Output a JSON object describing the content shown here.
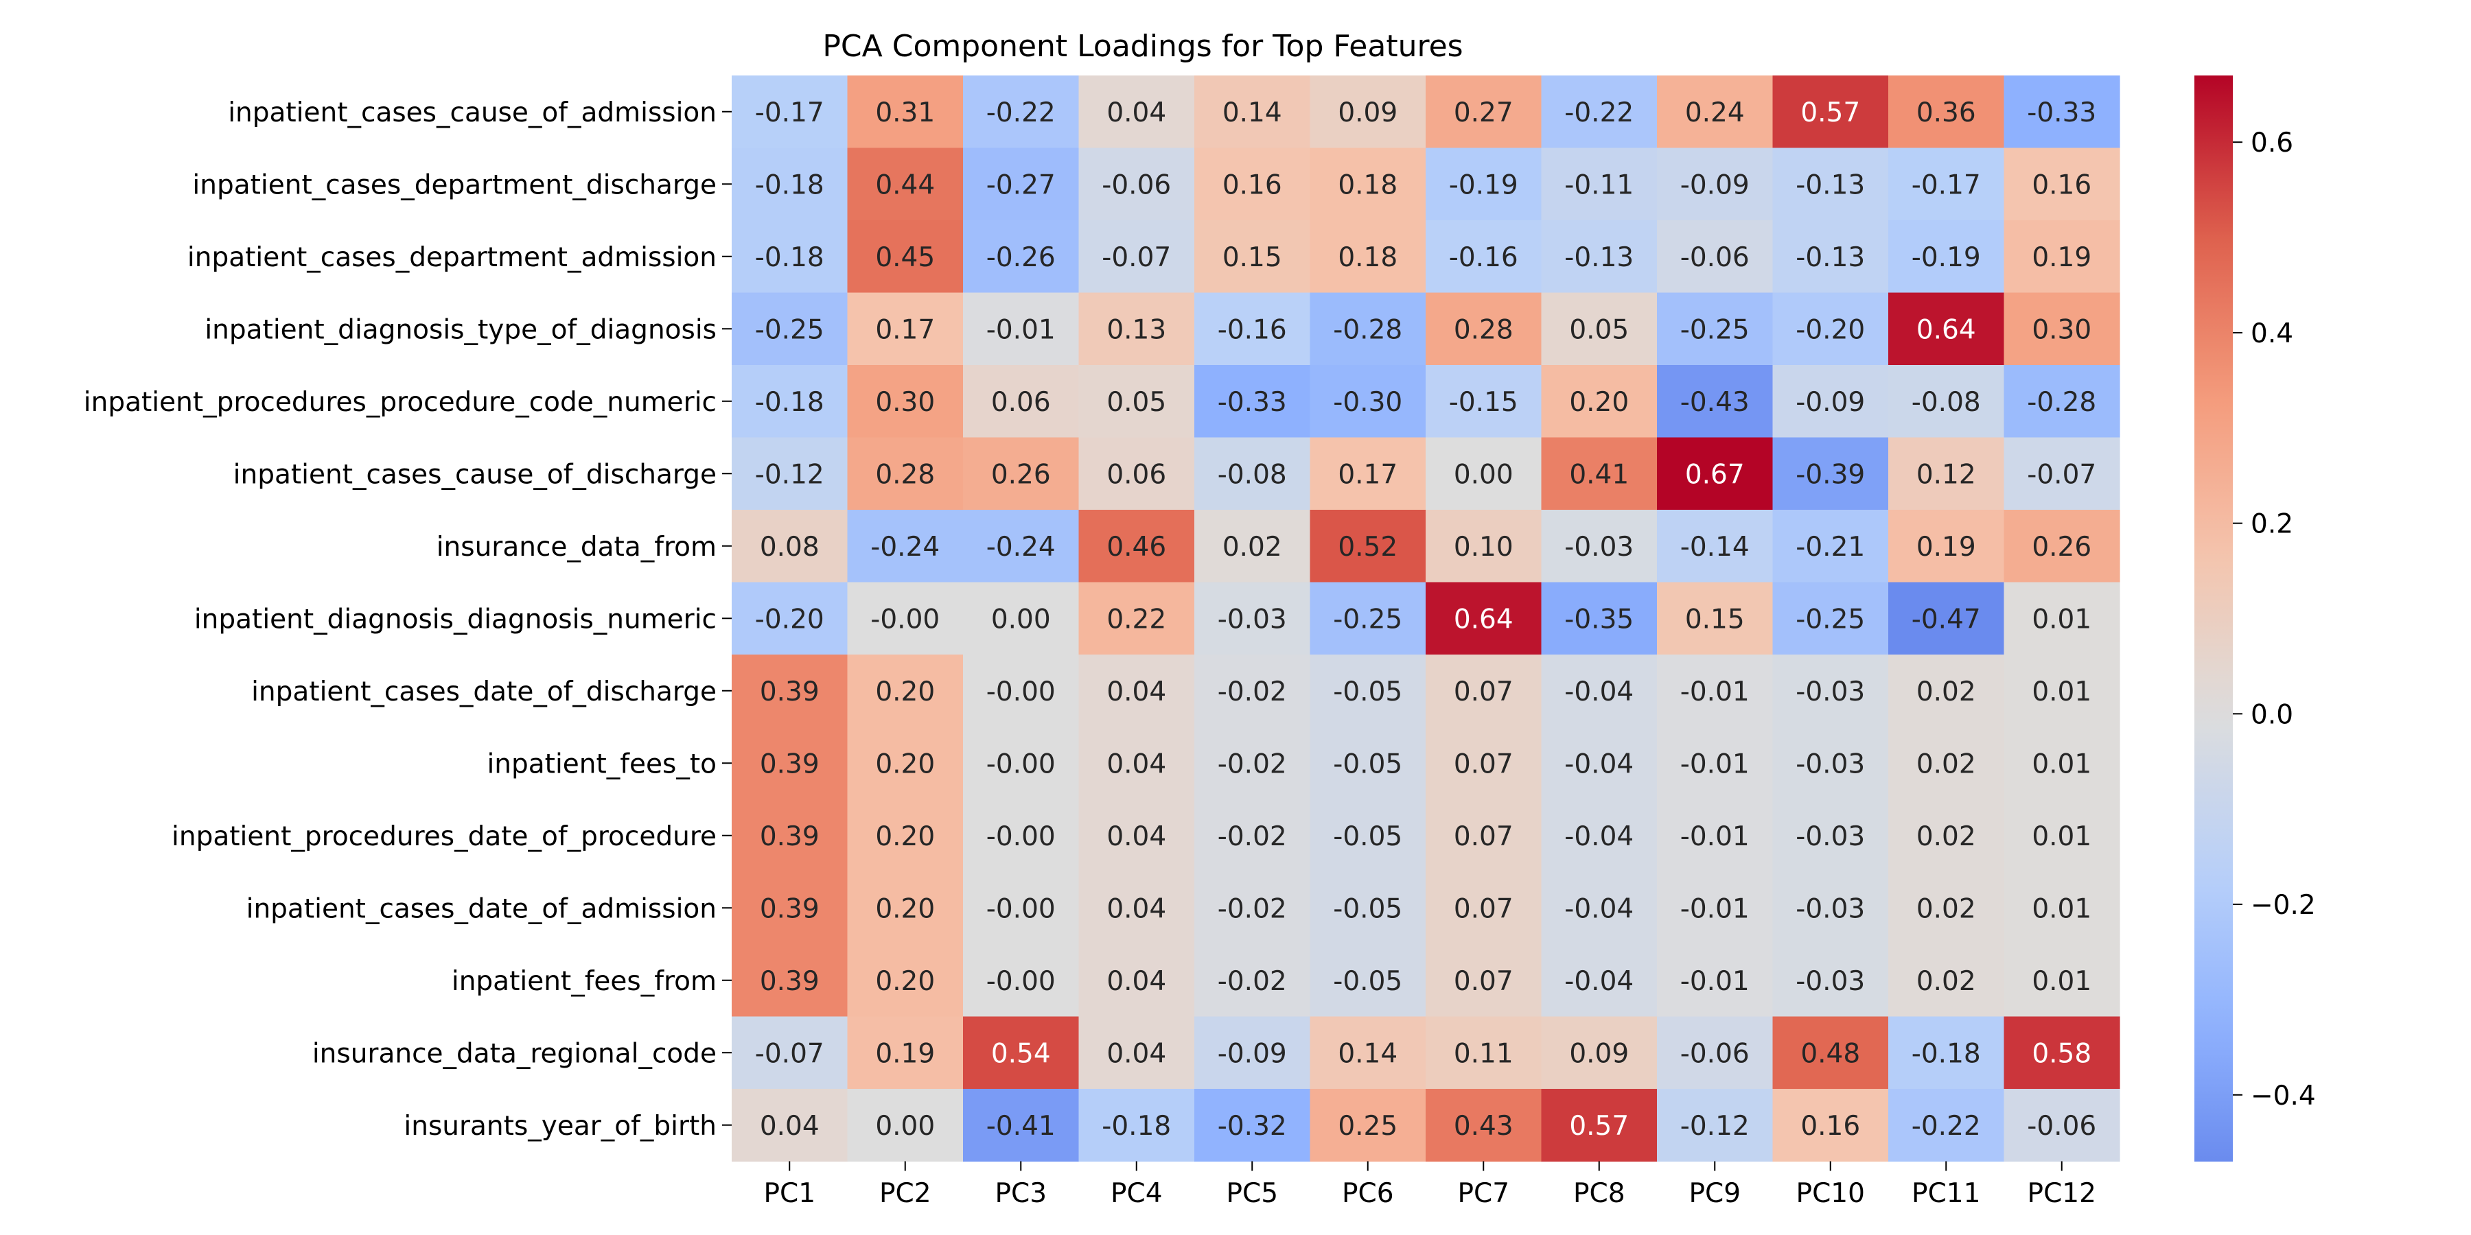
{
  "chart_data": {
    "type": "heatmap",
    "title": "PCA Component Loadings for Top Features",
    "xlabel": "",
    "ylabel": "",
    "columns": [
      "PC1",
      "PC2",
      "PC3",
      "PC4",
      "PC5",
      "PC6",
      "PC7",
      "PC8",
      "PC9",
      "PC10",
      "PC11",
      "PC12"
    ],
    "rows": [
      "inpatient_cases_cause_of_admission",
      "inpatient_cases_department_discharge",
      "inpatient_cases_department_admission",
      "inpatient_diagnosis_type_of_diagnosis",
      "inpatient_procedures_procedure_code_numeric",
      "inpatient_cases_cause_of_discharge",
      "insurance_data_from",
      "inpatient_diagnosis_diagnosis_numeric",
      "inpatient_cases_date_of_discharge",
      "inpatient_fees_to",
      "inpatient_procedures_date_of_procedure",
      "inpatient_cases_date_of_admission",
      "inpatient_fees_from",
      "insurance_data_regional_code",
      "insurants_year_of_birth"
    ],
    "labels": [
      [
        "-0.17",
        "0.31",
        "-0.22",
        "0.04",
        "0.14",
        "0.09",
        "0.27",
        "-0.22",
        "0.24",
        "0.57",
        "0.36",
        "-0.33"
      ],
      [
        "-0.18",
        "0.44",
        "-0.27",
        "-0.06",
        "0.16",
        "0.18",
        "-0.19",
        "-0.11",
        "-0.09",
        "-0.13",
        "-0.17",
        "0.16"
      ],
      [
        "-0.18",
        "0.45",
        "-0.26",
        "-0.07",
        "0.15",
        "0.18",
        "-0.16",
        "-0.13",
        "-0.06",
        "-0.13",
        "-0.19",
        "0.19"
      ],
      [
        "-0.25",
        "0.17",
        "-0.01",
        "0.13",
        "-0.16",
        "-0.28",
        "0.28",
        "0.05",
        "-0.25",
        "-0.20",
        "0.64",
        "0.30"
      ],
      [
        "-0.18",
        "0.30",
        "0.06",
        "0.05",
        "-0.33",
        "-0.30",
        "-0.15",
        "0.20",
        "-0.43",
        "-0.09",
        "-0.08",
        "-0.28"
      ],
      [
        "-0.12",
        "0.28",
        "0.26",
        "0.06",
        "-0.08",
        "0.17",
        "0.00",
        "0.41",
        "0.67",
        "-0.39",
        "0.12",
        "-0.07"
      ],
      [
        "0.08",
        "-0.24",
        "-0.24",
        "0.46",
        "0.02",
        "0.52",
        "0.10",
        "-0.03",
        "-0.14",
        "-0.21",
        "0.19",
        "0.26"
      ],
      [
        "-0.20",
        "-0.00",
        "0.00",
        "0.22",
        "-0.03",
        "-0.25",
        "0.64",
        "-0.35",
        "0.15",
        "-0.25",
        "-0.47",
        "0.01"
      ],
      [
        "0.39",
        "0.20",
        "-0.00",
        "0.04",
        "-0.02",
        "-0.05",
        "0.07",
        "-0.04",
        "-0.01",
        "-0.03",
        "0.02",
        "0.01"
      ],
      [
        "0.39",
        "0.20",
        "-0.00",
        "0.04",
        "-0.02",
        "-0.05",
        "0.07",
        "-0.04",
        "-0.01",
        "-0.03",
        "0.02",
        "0.01"
      ],
      [
        "0.39",
        "0.20",
        "-0.00",
        "0.04",
        "-0.02",
        "-0.05",
        "0.07",
        "-0.04",
        "-0.01",
        "-0.03",
        "0.02",
        "0.01"
      ],
      [
        "0.39",
        "0.20",
        "-0.00",
        "0.04",
        "-0.02",
        "-0.05",
        "0.07",
        "-0.04",
        "-0.01",
        "-0.03",
        "0.02",
        "0.01"
      ],
      [
        "0.39",
        "0.20",
        "-0.00",
        "0.04",
        "-0.02",
        "-0.05",
        "0.07",
        "-0.04",
        "-0.01",
        "-0.03",
        "0.02",
        "0.01"
      ],
      [
        "-0.07",
        "0.19",
        "0.54",
        "0.04",
        "-0.09",
        "0.14",
        "0.11",
        "0.09",
        "-0.06",
        "0.48",
        "-0.18",
        "0.58"
      ],
      [
        "0.04",
        "0.00",
        "-0.41",
        "-0.18",
        "-0.32",
        "0.25",
        "0.43",
        "0.57",
        "-0.12",
        "0.16",
        "-0.22",
        "-0.06"
      ]
    ],
    "colormap": "coolwarm",
    "center": 0,
    "vmin": -0.47,
    "vmax": 0.67,
    "colorbar": {
      "ticks": [
        0.6,
        0.4,
        0.2,
        0.0,
        -0.2,
        -0.4
      ],
      "tick_labels": [
        "0.6",
        "0.4",
        "0.2",
        "0.0",
        "−0.2",
        "−0.4"
      ],
      "placement": "right"
    },
    "grid": false
  }
}
